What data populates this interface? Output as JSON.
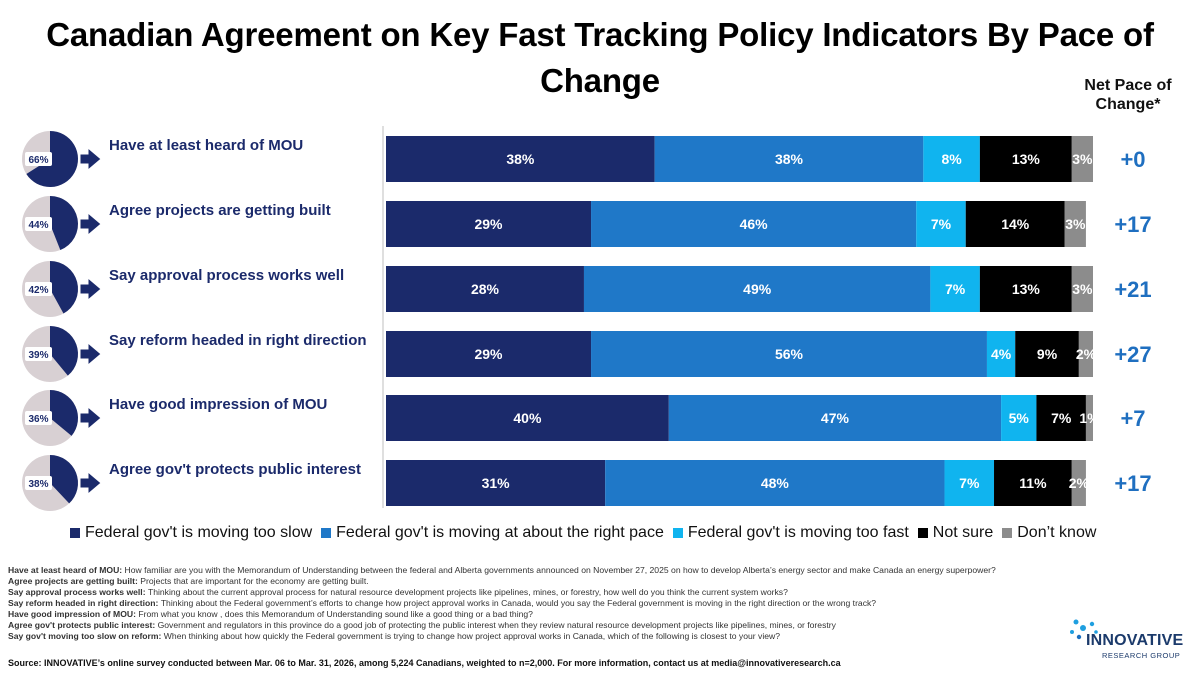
{
  "title": "Canadian Agreement on Key Fast Tracking Policy Indicators By Pace of Change",
  "net_header": "Net Pace of Change*",
  "chart_data": {
    "type": "bar",
    "orientation": "horizontal",
    "stacked": true,
    "categories": [
      "Have at least heard of MOU",
      "Agree projects are getting built",
      "Say approval process works well",
      "Say reform headed in right direction",
      "Have good impression of MOU",
      "Agree gov't protects public interest"
    ],
    "indicator_pct": [
      66,
      44,
      42,
      39,
      36,
      38
    ],
    "net_pace": [
      "+0",
      "+17",
      "+21",
      "+27",
      "+7",
      "+17"
    ],
    "series": [
      {
        "name": "Federal gov't is moving too slow",
        "color": "#1b2a6b",
        "values": [
          38,
          29,
          28,
          29,
          40,
          31
        ]
      },
      {
        "name": "Federal gov't is moving at about the right pace",
        "color": "#1f78c8",
        "values": [
          38,
          46,
          49,
          56,
          47,
          48
        ]
      },
      {
        "name": "Federal gov't is moving too fast",
        "color": "#10b4ef",
        "values": [
          8,
          7,
          7,
          4,
          5,
          7
        ]
      },
      {
        "name": "Not sure",
        "color": "#000000",
        "values": [
          13,
          14,
          13,
          9,
          7,
          11
        ]
      },
      {
        "name": "Don’t know",
        "color": "#8c8c8c",
        "values": [
          3,
          3,
          3,
          2,
          1,
          2
        ]
      }
    ],
    "xlim": [
      0,
      100
    ],
    "legend_position": "bottom"
  },
  "colors": {
    "net_value": "#1f6fc0",
    "pie_fill": "#1b2a6b",
    "pie_rest": "#d8d0d3",
    "arrow": "#1b2a6b"
  },
  "notes": [
    {
      "label": "Have at least heard of MOU:",
      "text": "How familiar are you with the Memorandum of Understanding between the federal and Alberta governments announced on November 27, 2025 on how to develop Alberta’s energy sector and make Canada an energy superpower?"
    },
    {
      "label": "Agree projects are getting built:",
      "text": "Projects that are important for the economy are getting built."
    },
    {
      "label": "Say approval process works well:",
      "text": "Thinking about the current approval process for natural resource development projects like pipelines, mines, or forestry, how well do you think the current system works?"
    },
    {
      "label": "Say reform headed in right direction:",
      "text": "Thinking about the Federal government’s efforts to change how project approval works in Canada, would you say the Federal government is moving in the right direction or the wrong track?"
    },
    {
      "label": "Have good impression of MOU:",
      "text": "From what you know , does this Memorandum of Understanding sound like a good thing or a bad thing?"
    },
    {
      "label": "Agree gov't protects public interest:",
      "text": "Government and regulators in this province do a good job of protecting the public interest when they review natural resource development projects like pipelines, mines, or forestry"
    },
    {
      "label": "Say gov't moving too slow on reform:",
      "text": "When thinking about how quickly the Federal government is trying to change how project approval works in Canada, which of the following is closest to your view?"
    }
  ],
  "source": "Source: INNOVATIVE’s online survey conducted between Mar. 06 to Mar. 31, 2026, among 5,224 Canadians, weighted to n=2,000. For more information, contact us at media@innovativeresearch.ca",
  "logo": {
    "name": "INNOVATIVE",
    "sub": "RESEARCH GROUP"
  }
}
